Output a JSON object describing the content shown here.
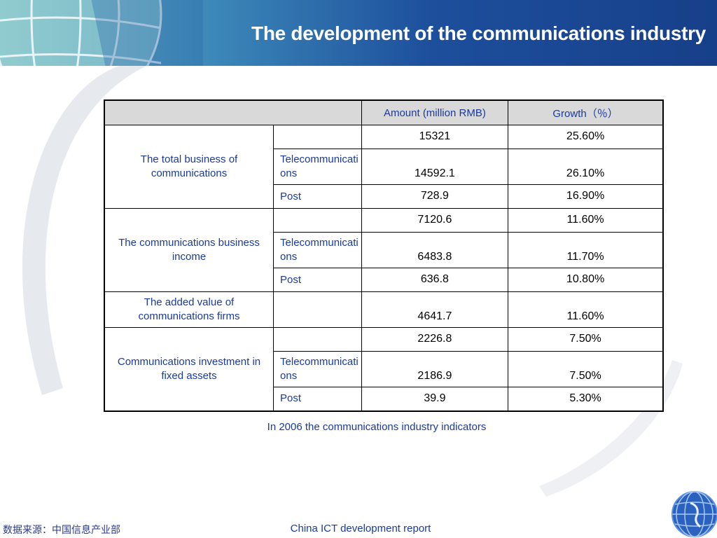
{
  "slide": {
    "title": "The development of the communications industry",
    "caption": "In 2006 the communications industry indicators",
    "footer": "China ICT development report",
    "source": "数据来源：中国信息产业部"
  },
  "table": {
    "headers": [
      "",
      "Amount (million RMB)",
      "Growth（％）"
    ],
    "groups": [
      {
        "label": "The total business of communications",
        "rows": [
          {
            "sub": "",
            "amount": "15321",
            "growth": "25.60%"
          },
          {
            "sub": "Telecommunications",
            "amount": "14592.1",
            "growth": "26.10%"
          },
          {
            "sub": "Post",
            "amount": "728.9",
            "growth": "16.90%"
          }
        ]
      },
      {
        "label": "The communications business income",
        "rows": [
          {
            "sub": "",
            "amount": "7120.6",
            "growth": "11.60%"
          },
          {
            "sub": "Telecommunications",
            "amount": "6483.8",
            "growth": "11.70%"
          },
          {
            "sub": "Post",
            "amount": "636.8",
            "growth": "10.80%"
          }
        ]
      },
      {
        "label": "The added value of communications firms",
        "rows": [
          {
            "sub": "",
            "amount": "4641.7",
            "growth": "11.60%"
          }
        ]
      },
      {
        "label": "Communications investment in fixed assets",
        "rows": [
          {
            "sub": "",
            "amount": "2226.8",
            "growth": "7.50%"
          },
          {
            "sub": "Telecommunications",
            "amount": "2186.9",
            "growth": "7.50%"
          },
          {
            "sub": "Post",
            "amount": "39.9",
            "growth": "5.30%"
          }
        ]
      }
    ]
  },
  "colors": {
    "header_dark": "#173f8a",
    "header_light": "#7fc3c7",
    "label_text": "#1a3a9e",
    "header_cell_bg": "#d9d9d9"
  },
  "icons": [
    "globe-image",
    "globe-logo-icon"
  ]
}
